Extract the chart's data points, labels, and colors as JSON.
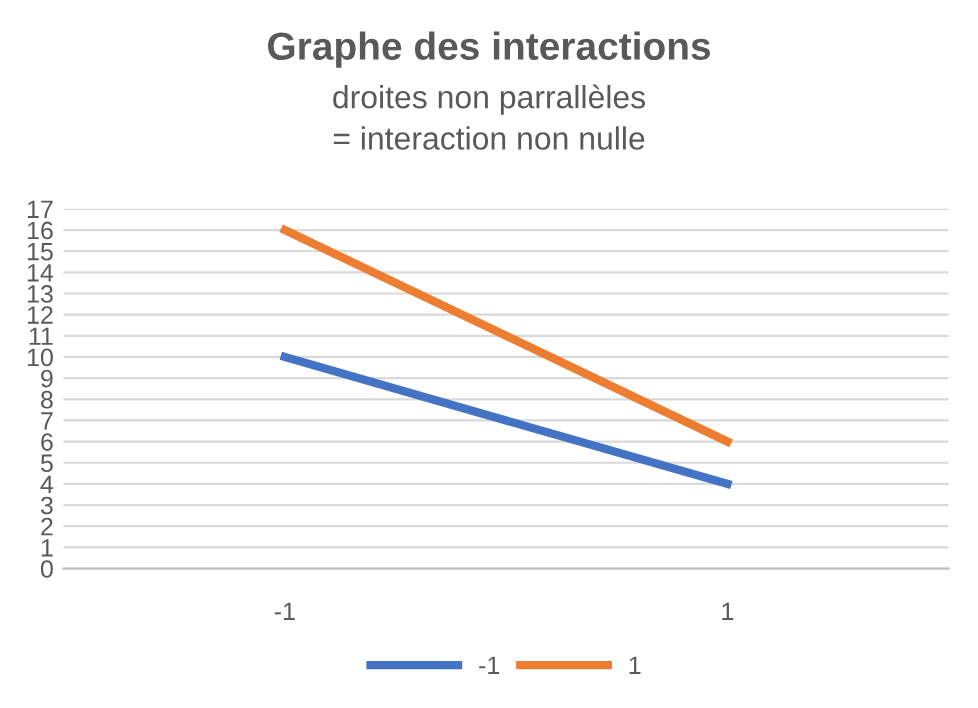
{
  "chart_data": {
    "type": "line",
    "title": "Graphe des interactions",
    "subtitle": "droites non parrallèles\n= interaction non nulle",
    "categories": [
      "-1",
      "1"
    ],
    "series": [
      {
        "name": "-1",
        "color": "#4472c4",
        "values": [
          10,
          4
        ]
      },
      {
        "name": "1",
        "color": "#ed7d31",
        "values": [
          16,
          6
        ]
      }
    ],
    "ylim": [
      0,
      17
    ],
    "yticks": [
      0,
      1,
      2,
      3,
      4,
      5,
      6,
      7,
      8,
      9,
      10,
      11,
      12,
      13,
      14,
      15,
      16,
      17
    ],
    "grid": "y",
    "legend": "bottom",
    "marker": "none",
    "line_style": "solid"
  }
}
